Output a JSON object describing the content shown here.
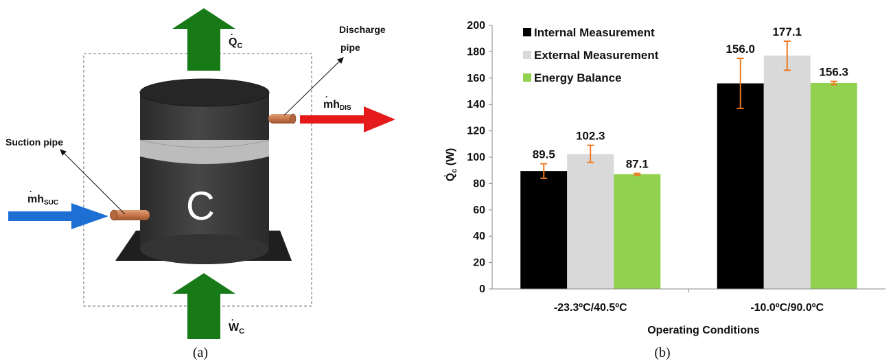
{
  "colors": {
    "body_dark": "#3d3d3d",
    "body_top": "#2c2c2c",
    "band_gray": "#b9b9b9",
    "pipe_copper": "#c8774a",
    "arrow_green": "#177a17",
    "arrow_red": "#e51b1b",
    "arrow_blue": "#1d6fd4",
    "series_black": "#000000",
    "series_light": "#d9d9d9",
    "series_green": "#92d050",
    "error_bar": "#f07820"
  },
  "panel_a": {
    "caption": "(a)",
    "compressor_letter": "C",
    "heat_label_main": "Q",
    "heat_label_sub": "C",
    "work_label_main": "W",
    "work_label_sub": "C",
    "discharge_title_line1": "Discharge",
    "discharge_title_line2": "pipe",
    "discharge_flow_main": "mh",
    "discharge_flow_sub": "DIS",
    "suction_title": "Suction pipe",
    "suction_flow_main": "mh",
    "suction_flow_sub": "SUC"
  },
  "panel_b": {
    "caption": "(b)",
    "ylabel_main": "Q",
    "ylabel_sub": "c",
    "ylabel_unit": " (W)"
  },
  "chart_data": {
    "type": "bar",
    "title": "",
    "xlabel": "Operating Conditions",
    "ylabel": "Qc (W)",
    "ylim": [
      0,
      200
    ],
    "ytick_step": 20,
    "yticks": [
      "0",
      "20",
      "40",
      "60",
      "80",
      "100",
      "120",
      "140",
      "160",
      "180",
      "200"
    ],
    "categories": [
      "-23.3ºC/40.5ºC",
      "-10.0ºC/90.0ºC"
    ],
    "legend_position": "top-left",
    "grid": false,
    "series": [
      {
        "name": "Internal Measurement",
        "values": [
          89.5,
          156.0
        ],
        "labels": [
          "89.5",
          "156.0"
        ],
        "error": [
          [
            84,
            95
          ],
          [
            137,
            175
          ]
        ]
      },
      {
        "name": "External Measurement",
        "values": [
          102.3,
          177.1
        ],
        "labels": [
          "102.3",
          "177.1"
        ],
        "error": [
          [
            96,
            109
          ],
          [
            166,
            188
          ]
        ]
      },
      {
        "name": "Energy Balance",
        "values": [
          87.1,
          156.3
        ],
        "labels": [
          "87.1",
          "156.3"
        ],
        "error": [
          [
            86.3,
            87.7
          ],
          [
            155,
            157.5
          ]
        ]
      }
    ]
  }
}
